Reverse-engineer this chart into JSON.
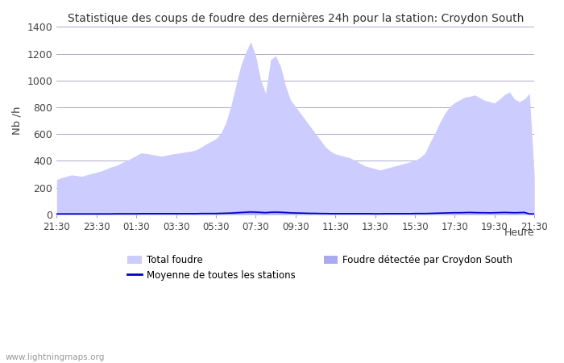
{
  "title": "Statistique des coups de foudre des dernières 24h pour la station: Croydon South",
  "ylabel": "Nb /h",
  "xlabel": "Heure",
  "watermark": "www.lightningmaps.org",
  "ylim": [
    0,
    1400
  ],
  "yticks": [
    0,
    200,
    400,
    600,
    800,
    1000,
    1200,
    1400
  ],
  "xtick_labels": [
    "21:30",
    "23:30",
    "01:30",
    "03:30",
    "05:30",
    "07:30",
    "09:30",
    "11:30",
    "13:30",
    "15:30",
    "17:30",
    "19:30",
    "21:30"
  ],
  "fill_color_total": "#ccccff",
  "fill_color_detected": "#aaaaee",
  "line_color_moyenne": "#0000cc",
  "background_color": "#ffffff",
  "grid_color": "#aaaacc",
  "legend_total": "Total foudre",
  "legend_detected": "Foudre détectée par Croydon South",
  "legend_moyenne": "Moyenne de toutes les stations",
  "total_foudre": [
    260,
    275,
    285,
    295,
    290,
    285,
    295,
    305,
    315,
    325,
    340,
    355,
    365,
    385,
    400,
    420,
    440,
    460,
    455,
    448,
    442,
    435,
    442,
    450,
    455,
    460,
    468,
    472,
    482,
    502,
    525,
    545,
    565,
    605,
    685,
    805,
    960,
    1110,
    1210,
    1290,
    1185,
    1005,
    905,
    1155,
    1185,
    1105,
    960,
    855,
    805,
    755,
    705,
    655,
    605,
    555,
    505,
    472,
    452,
    442,
    432,
    422,
    402,
    382,
    362,
    352,
    342,
    332,
    342,
    352,
    362,
    372,
    382,
    392,
    402,
    425,
    455,
    535,
    605,
    685,
    755,
    805,
    835,
    855,
    875,
    882,
    892,
    872,
    852,
    842,
    832,
    862,
    895,
    915,
    862,
    842,
    862,
    905,
    280
  ],
  "foudre_detectee": [
    8,
    8,
    9,
    9,
    9,
    8,
    8,
    8,
    9,
    9,
    10,
    10,
    11,
    11,
    12,
    12,
    13,
    13,
    12,
    12,
    12,
    12,
    12,
    12,
    12,
    12,
    13,
    13,
    13,
    14,
    14,
    15,
    16,
    17,
    18,
    21,
    25,
    28,
    30,
    32,
    30,
    27,
    25,
    28,
    29,
    27,
    25,
    22,
    20,
    19,
    17,
    16,
    15,
    14,
    13,
    11,
    11,
    11,
    11,
    11,
    10,
    10,
    9,
    9,
    9,
    9,
    9,
    9,
    9,
    9,
    10,
    10,
    10,
    10,
    11,
    12,
    14,
    15,
    16,
    17,
    18,
    19,
    21,
    22,
    21,
    20,
    20,
    19,
    20,
    21,
    22,
    21,
    20,
    21,
    22,
    6,
    5
  ],
  "moyenne": [
    4,
    4,
    4,
    4,
    4,
    4,
    4,
    4,
    4,
    4,
    4,
    4,
    5,
    5,
    5,
    5,
    5,
    6,
    6,
    6,
    6,
    6,
    6,
    6,
    6,
    6,
    6,
    6,
    6,
    7,
    7,
    7,
    7,
    8,
    9,
    10,
    12,
    14,
    16,
    18,
    17,
    15,
    13,
    16,
    17,
    16,
    14,
    12,
    11,
    10,
    9,
    8,
    8,
    7,
    7,
    6,
    6,
    6,
    6,
    6,
    6,
    6,
    6,
    6,
    5,
    5,
    6,
    6,
    6,
    6,
    6,
    6,
    7,
    7,
    7,
    8,
    9,
    10,
    11,
    12,
    13,
    13,
    14,
    15,
    14,
    13,
    13,
    12,
    13,
    14,
    15,
    14,
    13,
    14,
    15,
    4,
    4
  ]
}
